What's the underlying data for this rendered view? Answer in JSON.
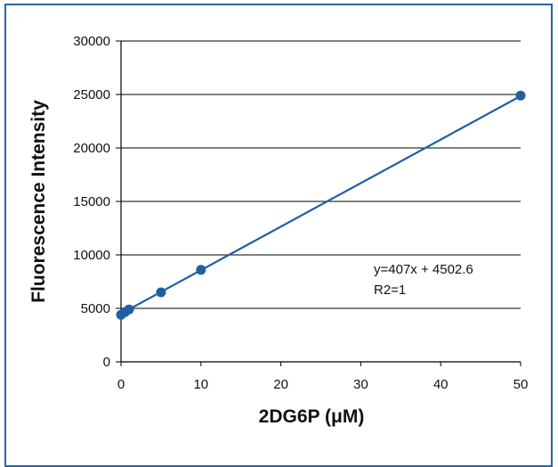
{
  "colors": {
    "series": "#1f5fa3",
    "frame": "#2a64a8",
    "grid": "#000000"
  },
  "chart_data": {
    "type": "scatter",
    "xlabel": "2DG6P (μM)",
    "ylabel": "Fluorescence Intensity",
    "xlim": [
      0,
      50
    ],
    "ylim": [
      0,
      30000
    ],
    "x_ticks": [
      0,
      10,
      20,
      30,
      40,
      50
    ],
    "y_ticks": [
      0,
      5000,
      10000,
      15000,
      20000,
      25000,
      30000
    ],
    "grid": "horizontal",
    "series": [
      {
        "x": [
          0,
          0.5,
          1,
          5,
          10,
          50
        ],
        "y": [
          4400,
          4650,
          4900,
          6500,
          8600,
          24900
        ]
      }
    ],
    "trendline": {
      "slope": 407,
      "intercept": 4502.6
    },
    "annotations": {
      "equation": "y=407x + 4502.6",
      "r2": "R2=1"
    }
  }
}
